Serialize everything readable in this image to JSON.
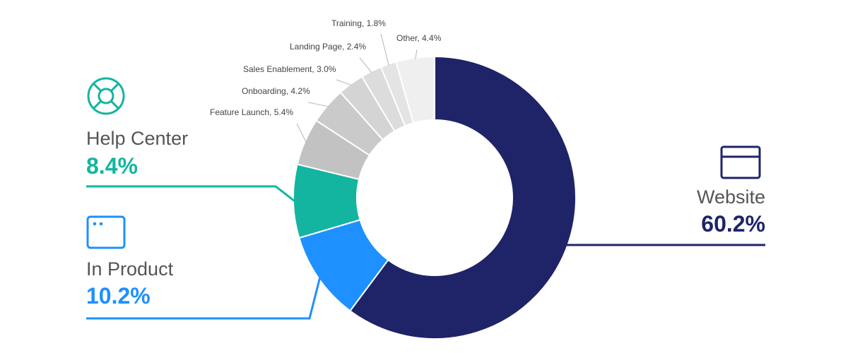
{
  "chart_data": {
    "type": "pie",
    "variant": "donut",
    "unit": "%",
    "slices": [
      {
        "name": "Website",
        "value": 60.2,
        "value_label": "60.2%",
        "color": "#1f2468"
      },
      {
        "name": "In Product",
        "value": 10.2,
        "value_label": "10.2%",
        "color": "#1e90ff"
      },
      {
        "name": "Help Center",
        "value": 8.4,
        "value_label": "8.4%",
        "color": "#13b5a0"
      },
      {
        "name": "Feature Launch",
        "value": 5.4,
        "label": "Feature Launch, 5.4%",
        "color": "#c2c2c2"
      },
      {
        "name": "Onboarding",
        "value": 4.2,
        "label": "Onboarding, 4.2%",
        "color": "#cacaca"
      },
      {
        "name": "Sales Enablement",
        "value": 3.0,
        "label": "Sales Enablement, 3.0%",
        "color": "#d4d4d4"
      },
      {
        "name": "Landing Page",
        "value": 2.4,
        "label": "Landing Page, 2.4%",
        "color": "#dcdcdc"
      },
      {
        "name": "Training",
        "value": 1.8,
        "label": "Training, 1.8%",
        "color": "#e4e4e4"
      },
      {
        "name": "Other",
        "value": 4.4,
        "label": "Other, 4.4%",
        "color": "#efefef"
      }
    ],
    "icons": {
      "Website": "browser-window-icon",
      "In Product": "app-window-icon",
      "Help Center": "lifebuoy-icon"
    },
    "colors": {
      "name_text": "#555555",
      "small_label_text": "#444444",
      "leader_line": "#b5b5b5"
    }
  }
}
